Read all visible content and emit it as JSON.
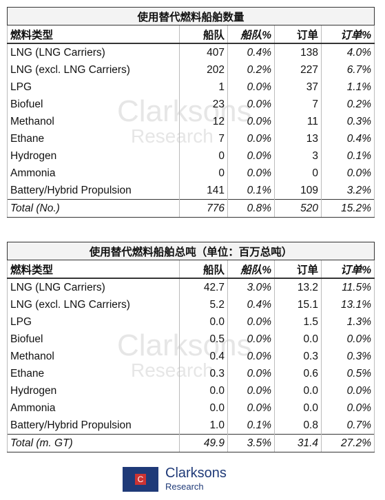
{
  "tables": [
    {
      "title": "使用替代燃料船舶数量",
      "header": [
        "燃料类型",
        "船队",
        "船队%",
        "订单",
        "订单%"
      ],
      "rows": [
        [
          "LNG (LNG Carriers)",
          "407",
          "0.4%",
          "138",
          "4.0%"
        ],
        [
          "LNG (excl. LNG Carriers)",
          "202",
          "0.2%",
          "227",
          "6.7%"
        ],
        [
          "LPG",
          "1",
          "0.0%",
          "37",
          "1.1%"
        ],
        [
          "Biofuel",
          "23",
          "0.0%",
          "7",
          "0.2%"
        ],
        [
          "Methanol",
          "12",
          "0.0%",
          "11",
          "0.3%"
        ],
        [
          "Ethane",
          "7",
          "0.0%",
          "13",
          "0.4%"
        ],
        [
          "Hydrogen",
          "0",
          "0.0%",
          "3",
          "0.1%"
        ],
        [
          "Ammonia",
          "0",
          "0.0%",
          "0",
          "0.0%"
        ],
        [
          "Battery/Hybrid Propulsion",
          "141",
          "0.1%",
          "109",
          "3.2%"
        ]
      ],
      "total": [
        "Total (No.)",
        "776",
        "0.8%",
        "520",
        "15.2%"
      ]
    },
    {
      "title": "使用替代燃料船舶总吨（单位：百万总吨）",
      "header": [
        "燃料类型",
        "船队",
        "船队%",
        "订单",
        "订单%"
      ],
      "rows": [
        [
          "LNG (LNG Carriers)",
          "42.7",
          "3.0%",
          "13.2",
          "11.5%"
        ],
        [
          "LNG (excl. LNG Carriers)",
          "5.2",
          "0.4%",
          "15.1",
          "13.1%"
        ],
        [
          "LPG",
          "0.0",
          "0.0%",
          "1.5",
          "1.3%"
        ],
        [
          "Biofuel",
          "0.5",
          "0.0%",
          "0.0",
          "0.0%"
        ],
        [
          "Methanol",
          "0.4",
          "0.0%",
          "0.3",
          "0.3%"
        ],
        [
          "Ethane",
          "0.3",
          "0.0%",
          "0.6",
          "0.5%"
        ],
        [
          "Hydrogen",
          "0.0",
          "0.0%",
          "0.0",
          "0.0%"
        ],
        [
          "Ammonia",
          "0.0",
          "0.0%",
          "0.0",
          "0.0%"
        ],
        [
          "Battery/Hybrid Propulsion",
          "1.0",
          "0.1%",
          "0.8",
          "0.7%"
        ]
      ],
      "total": [
        "Total (m. GT)",
        "49.9",
        "3.5%",
        "31.4",
        "27.2%"
      ]
    }
  ],
  "footer": {
    "brand": "Clarksons",
    "sub": "Research"
  }
}
